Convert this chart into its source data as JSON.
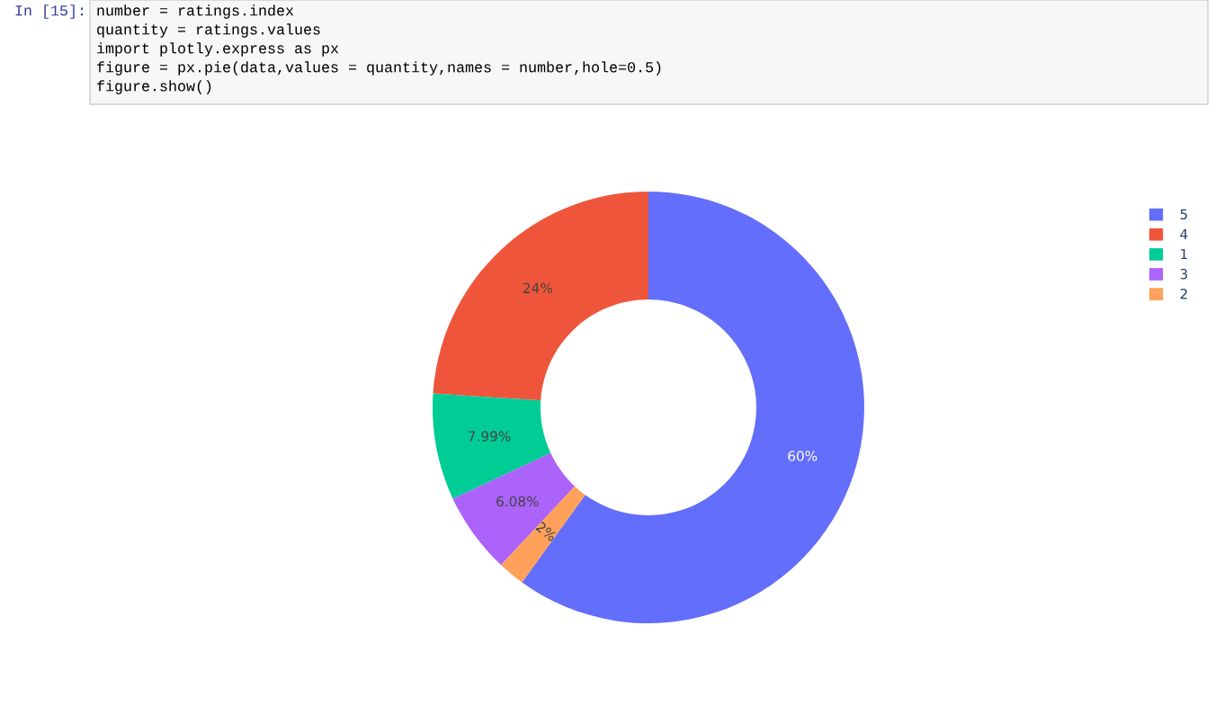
{
  "chart_data": {
    "type": "donut",
    "categories": [
      "5",
      "4",
      "1",
      "3",
      "2"
    ],
    "values": [
      59.96,
      23.97,
      7.99,
      6.08,
      2.0
    ],
    "colors": [
      "#636efa",
      "#ef553b",
      "#00cc96",
      "#ab63fa",
      "#ffa15a"
    ],
    "value_labels": [
      "60%",
      "24%",
      "7.99%",
      "6.08%",
      "2%"
    ],
    "legend": "top right",
    "annotations": [
      "In [15]:",
      "number = ratings.index",
      "quantity = ratings.values",
      "import plotly.express as px",
      "figure = px.pie(data,values = quantity,names = number,hole=0.5)",
      "figure.show()"
    ]
  }
}
